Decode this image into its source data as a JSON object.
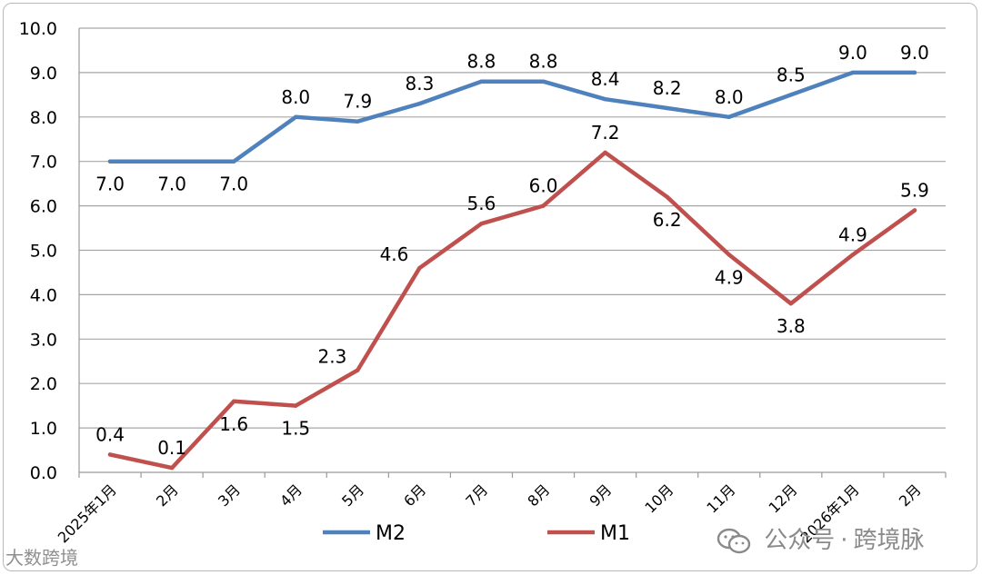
{
  "chart_data": {
    "type": "line",
    "title": "",
    "xlabel": "",
    "ylabel": "",
    "ylim": [
      0,
      10
    ],
    "yticks": [
      "0.0",
      "1.0",
      "2.0",
      "3.0",
      "4.0",
      "5.0",
      "6.0",
      "7.0",
      "8.0",
      "9.0",
      "10.0"
    ],
    "grid": true,
    "categories": [
      "2025年1月",
      "2月",
      "3月",
      "4月",
      "5月",
      "6月",
      "7月",
      "8月",
      "9月",
      "10月",
      "11月",
      "12月",
      "2026年1月",
      "2月"
    ],
    "series": [
      {
        "name": "M2",
        "color": "#4f81bd",
        "values": [
          7.0,
          7.0,
          7.0,
          8.0,
          7.9,
          8.3,
          8.8,
          8.8,
          8.4,
          8.2,
          8.0,
          8.5,
          9.0,
          9.0
        ],
        "labels": [
          "7.0",
          "7.0",
          "7.0",
          "8.0",
          "7.9",
          "8.3",
          "8.8",
          "8.8",
          "8.4",
          "8.2",
          "8.0",
          "8.5",
          "9.0",
          "9.0"
        ],
        "label_side": [
          "below",
          "below",
          "below",
          "above",
          "above",
          "above",
          "above",
          "above",
          "above",
          "above",
          "above",
          "above",
          "above",
          "above"
        ]
      },
      {
        "name": "M1",
        "color": "#c0504d",
        "values": [
          0.4,
          0.1,
          1.6,
          1.5,
          2.3,
          4.6,
          5.6,
          6.0,
          7.2,
          6.2,
          4.9,
          3.8,
          4.9,
          5.9
        ],
        "labels": [
          "0.4",
          "0.1",
          "1.6",
          "1.5",
          "2.3",
          "4.6",
          "5.6",
          "6.0",
          "7.2",
          "6.2",
          "4.9",
          "3.8",
          "4.9",
          "5.9"
        ],
        "label_side": [
          "above",
          "above",
          "below",
          "below",
          "left",
          "left",
          "above",
          "above",
          "above",
          "below",
          "below",
          "below",
          "above",
          "above"
        ]
      }
    ],
    "legend": "bottom-center"
  },
  "watermarks": {
    "left": "大数跨境",
    "right_prefix": "公众号",
    "right_separator": "·",
    "right_name": "跨境脉"
  }
}
